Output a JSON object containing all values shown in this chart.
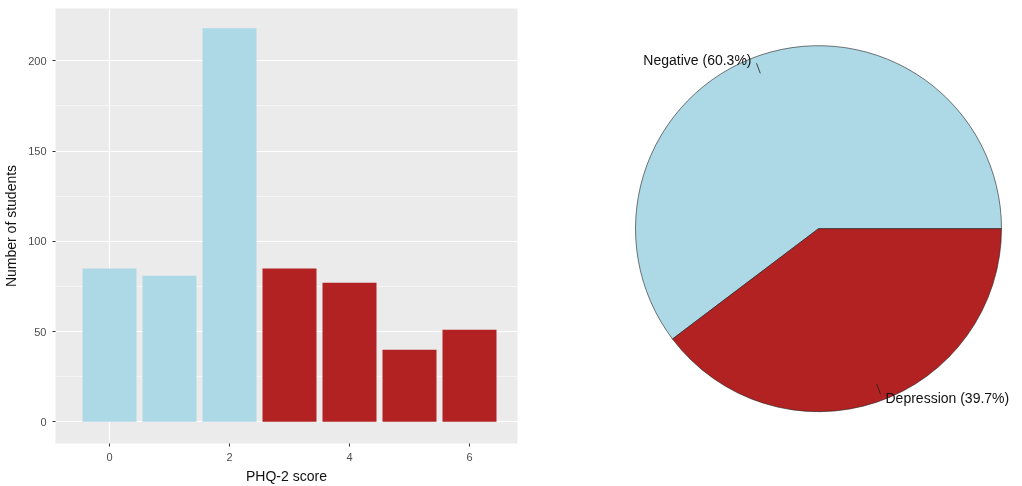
{
  "chart_data": [
    {
      "type": "bar",
      "xlabel": "PHQ-2 score",
      "ylabel": "Number of students",
      "x": [
        0,
        1,
        2,
        3,
        4,
        5,
        6
      ],
      "values": [
        85,
        81,
        218,
        85,
        77,
        40,
        51
      ],
      "colors": [
        "#add8e6",
        "#add8e6",
        "#add8e6",
        "#b22222",
        "#b22222",
        "#b22222",
        "#b22222"
      ],
      "xlim": [
        -0.9,
        6.8
      ],
      "ylim": [
        -12,
        229
      ],
      "xticks": [
        0,
        2,
        4,
        6
      ],
      "yticks": [
        0,
        50,
        100,
        150,
        200
      ],
      "grid": true
    },
    {
      "type": "pie",
      "categories": [
        "Negative (60.3%)",
        "Depression (39.7%)"
      ],
      "values": [
        60.3,
        39.7
      ],
      "colors": [
        "#add8e6",
        "#b22222"
      ]
    }
  ]
}
